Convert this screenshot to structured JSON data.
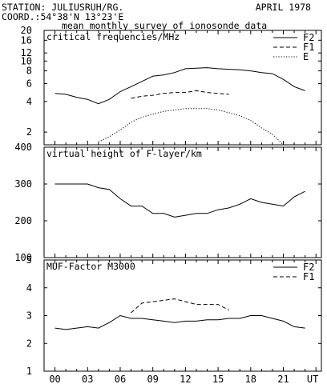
{
  "header": {
    "station": "STATION: JULIUSRUH/RG.",
    "coord": "COORD.:54°38'N 13°23'E",
    "date": "APRIL 1978",
    "subtitle": "mean monthly survey of ionosonde data"
  },
  "x_axis": {
    "ticks": [
      "00",
      "03",
      "06",
      "09",
      "12",
      "15",
      "18",
      "21",
      "UT"
    ],
    "range": [
      -1,
      24.5
    ]
  },
  "chart_data": [
    {
      "type": "line",
      "title": "critical frequencies/MHz",
      "y_scale": "log",
      "ylim": [
        1.5,
        20
      ],
      "y_ticks": [
        "2",
        "4",
        "6",
        "8",
        "10",
        "12",
        "16",
        "20"
      ],
      "legend_position": "top-right",
      "series": [
        {
          "name": "F2",
          "style": "solid",
          "x": [
            0,
            1,
            2,
            3,
            4,
            5,
            6,
            7,
            8,
            9,
            10,
            11,
            12,
            13,
            14,
            15,
            16,
            17,
            18,
            19,
            20,
            21,
            22,
            23
          ],
          "y": [
            4.8,
            4.7,
            4.4,
            4.2,
            3.8,
            4.2,
            5.0,
            5.6,
            6.3,
            7.1,
            7.3,
            7.7,
            8.4,
            8.5,
            8.6,
            8.4,
            8.3,
            8.2,
            8.0,
            7.7,
            7.5,
            6.6,
            5.6,
            5.1
          ]
        },
        {
          "name": "F1",
          "style": "dashed",
          "x": [
            7,
            8,
            9,
            10,
            11,
            12,
            13,
            14,
            15,
            16
          ],
          "y": [
            4.3,
            4.5,
            4.6,
            4.8,
            4.9,
            4.9,
            5.1,
            4.9,
            4.8,
            4.7
          ]
        },
        {
          "name": "E",
          "style": "dotted",
          "x": [
            4,
            5,
            6,
            7,
            8,
            9,
            10,
            11,
            12,
            13,
            14,
            15,
            16,
            17,
            18,
            19,
            20,
            21
          ],
          "y": [
            1.6,
            1.8,
            2.1,
            2.5,
            2.8,
            3.0,
            3.2,
            3.3,
            3.4,
            3.4,
            3.4,
            3.3,
            3.1,
            2.9,
            2.6,
            2.2,
            1.9,
            1.5
          ]
        }
      ]
    },
    {
      "type": "line",
      "title": "virtual height of F-layer/km",
      "ylim": [
        100,
        400
      ],
      "y_ticks": [
        "100",
        "200",
        "300",
        "400"
      ],
      "series": [
        {
          "style": "solid",
          "x": [
            0,
            1,
            2,
            3,
            4,
            5,
            6,
            7,
            8,
            9,
            10,
            11,
            12,
            13,
            14,
            15,
            16,
            17,
            18,
            19,
            20,
            21,
            22,
            23
          ],
          "y": [
            300,
            300,
            300,
            300,
            290,
            285,
            260,
            240,
            240,
            220,
            220,
            210,
            215,
            220,
            220,
            230,
            235,
            245,
            260,
            250,
            245,
            240,
            265,
            280
          ]
        }
      ]
    },
    {
      "type": "line",
      "title": "MUF-Factor M3000",
      "ylim": [
        1,
        5
      ],
      "y_ticks": [
        "1",
        "2",
        "3",
        "4",
        "5"
      ],
      "legend_position": "top-right",
      "series": [
        {
          "name": "F2",
          "style": "solid",
          "x": [
            0,
            1,
            2,
            3,
            4,
            5,
            6,
            7,
            8,
            9,
            10,
            11,
            12,
            13,
            14,
            15,
            16,
            17,
            18,
            19,
            20,
            21,
            22,
            23
          ],
          "y": [
            2.55,
            2.5,
            2.55,
            2.6,
            2.55,
            2.75,
            3.0,
            2.9,
            2.9,
            2.85,
            2.8,
            2.75,
            2.8,
            2.8,
            2.85,
            2.85,
            2.9,
            2.9,
            3.0,
            3.0,
            2.9,
            2.8,
            2.6,
            2.55
          ]
        },
        {
          "name": "F1",
          "style": "dashed",
          "x": [
            7,
            8,
            9,
            10,
            11,
            12,
            13,
            14,
            15,
            16
          ],
          "y": [
            3.1,
            3.45,
            3.5,
            3.55,
            3.6,
            3.5,
            3.4,
            3.4,
            3.4,
            3.2
          ]
        }
      ]
    }
  ]
}
